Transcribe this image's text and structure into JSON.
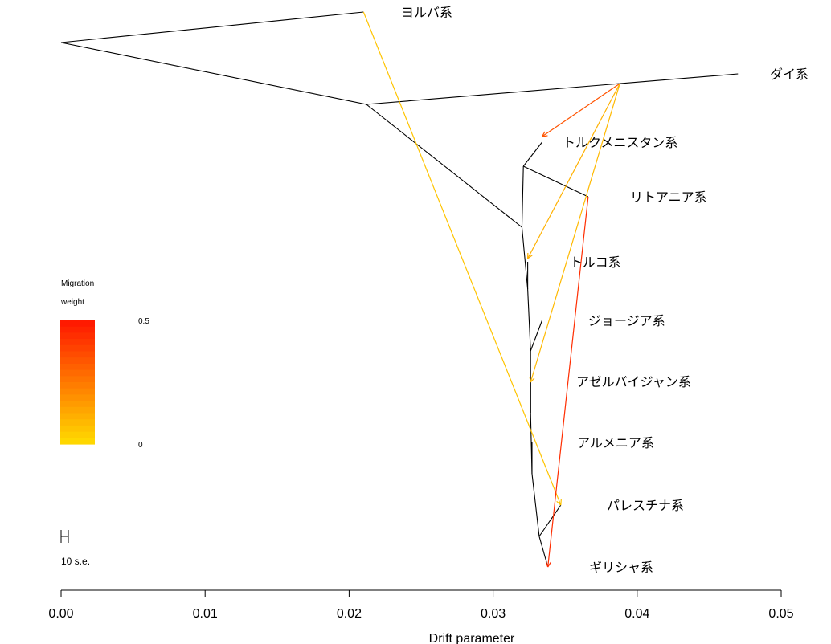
{
  "chart_data": {
    "type": "tree",
    "xlabel": "Drift parameter",
    "xlim": [
      0,
      0.05
    ],
    "x_ticks": [
      "0.00",
      "0.01",
      "0.02",
      "0.03",
      "0.04",
      "0.05"
    ],
    "x_tick_values": [
      0,
      0.01,
      0.02,
      0.03,
      0.04,
      0.05
    ],
    "populations": [
      {
        "name": "ヨルバ系",
        "drift": 0.021
      },
      {
        "name": "ダイ系",
        "drift": 0.047
      },
      {
        "name": "トルクメニスタン系",
        "drift": 0.0334
      },
      {
        "name": "リトアニア系",
        "drift": 0.0366
      },
      {
        "name": "トルコ系",
        "drift": 0.0324
      },
      {
        "name": "ジョージア系",
        "drift": 0.0334
      },
      {
        "name": "アゼルバイジャン系",
        "drift": 0.0326
      },
      {
        "name": "アルメニア系",
        "drift": 0.0327
      },
      {
        "name": "パレスチナ系",
        "drift": 0.0347
      },
      {
        "name": "ギリシャ系",
        "drift": 0.0338
      }
    ],
    "migration_edges": [
      {
        "from": "ダイ系 branch",
        "to": "トルクメニスタン系",
        "weight": 0.35
      },
      {
        "from": "ダイ系 branch",
        "to": "トルコ系",
        "weight": 0.1
      },
      {
        "from": "ダイ系 branch",
        "to": "アゼルバイジャン系",
        "weight": 0.08
      },
      {
        "from": "ヨルバ系",
        "to": "パレスチナ系",
        "weight": 0.05
      },
      {
        "from": "リトアニア系",
        "to": "ギリシャ系",
        "weight": 0.45
      }
    ],
    "legend": {
      "title_line1": "Migration",
      "title_line2": "weight",
      "max_label": "0.5",
      "min_label": "0",
      "colors": [
        "#FF1A00",
        "#FFD700"
      ]
    },
    "scale_bar_label": "10 s.e."
  }
}
